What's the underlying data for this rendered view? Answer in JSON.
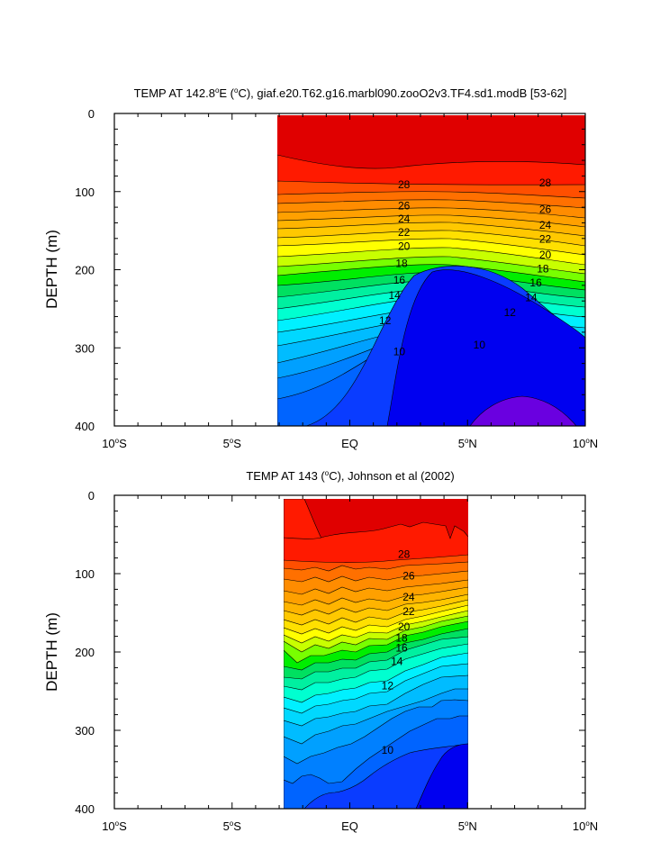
{
  "chart_data": [
    {
      "type": "contour",
      "title_prefix": "TEMP AT 142.8",
      "title_sup": "o",
      "title_mid": "E (",
      "title_sup2": "o",
      "title_suffix": "C), giaf.e20.T62.g16.marbl090.zooO2v3.TF4.sd1.modB [53-62]",
      "ylabel": "DEPTH (m)",
      "xlabel": "",
      "xlim": [
        -10,
        10
      ],
      "ylim": [
        400,
        0
      ],
      "data_xrange": [
        -2.9,
        10
      ],
      "x_ticks": [
        {
          "value": -10,
          "num": "10",
          "sup": "o",
          "hemi": "S"
        },
        {
          "value": -5,
          "num": "5",
          "sup": "o",
          "hemi": "S"
        },
        {
          "value": 0,
          "num": "EQ",
          "sup": "",
          "hemi": ""
        },
        {
          "value": 5,
          "num": "5",
          "sup": "o",
          "hemi": "N"
        },
        {
          "value": 10,
          "num": "10",
          "sup": "o",
          "hemi": "N"
        }
      ],
      "y_ticks": [
        "0",
        "100",
        "200",
        "300",
        "400"
      ],
      "contour_levels": [
        6,
        7,
        8,
        9,
        10,
        11,
        12,
        13,
        14,
        15,
        16,
        17,
        18,
        19,
        20,
        21,
        22,
        23,
        24,
        25,
        26,
        27,
        28,
        29
      ],
      "contour_labels": [
        {
          "text": "28",
          "x": 2.3,
          "depth": 91
        },
        {
          "text": "26",
          "x": 2.3,
          "depth": 118
        },
        {
          "text": "24",
          "x": 2.3,
          "depth": 135
        },
        {
          "text": "22",
          "x": 2.3,
          "depth": 152
        },
        {
          "text": "20",
          "x": 2.3,
          "depth": 170
        },
        {
          "text": "18",
          "x": 2.2,
          "depth": 192
        },
        {
          "text": "16",
          "x": 2.1,
          "depth": 213
        },
        {
          "text": "14",
          "x": 1.9,
          "depth": 233
        },
        {
          "text": "12",
          "x": 1.5,
          "depth": 265
        },
        {
          "text": "10",
          "x": 2.1,
          "depth": 305
        },
        {
          "text": "28",
          "x": 8.3,
          "depth": 89
        },
        {
          "text": "26",
          "x": 8.3,
          "depth": 123
        },
        {
          "text": "24",
          "x": 8.3,
          "depth": 143
        },
        {
          "text": "22",
          "x": 8.3,
          "depth": 161
        },
        {
          "text": "20",
          "x": 8.3,
          "depth": 181
        },
        {
          "text": "18",
          "x": 8.2,
          "depth": 199
        },
        {
          "text": "16",
          "x": 7.9,
          "depth": 217
        },
        {
          "text": "14",
          "x": 7.7,
          "depth": 236
        },
        {
          "text": "12",
          "x": 6.8,
          "depth": 255
        },
        {
          "text": "10",
          "x": 5.5,
          "depth": 296
        }
      ]
    },
    {
      "type": "contour",
      "title_prefix": "TEMP AT 143 (",
      "title_sup": "o",
      "title_mid": "C), Johnson et al (2002)",
      "title_sup2": "",
      "title_suffix": "",
      "ylabel": "DEPTH (m)",
      "xlabel": "",
      "xlim": [
        -10,
        10
      ],
      "ylim": [
        400,
        0
      ],
      "data_xrange": [
        -2.6,
        5
      ],
      "x_ticks": [
        {
          "value": -10,
          "num": "10",
          "sup": "o",
          "hemi": "S"
        },
        {
          "value": -5,
          "num": "5",
          "sup": "o",
          "hemi": "S"
        },
        {
          "value": 0,
          "num": "EQ",
          "sup": "",
          "hemi": ""
        },
        {
          "value": 5,
          "num": "5",
          "sup": "o",
          "hemi": "N"
        },
        {
          "value": 10,
          "num": "10",
          "sup": "o",
          "hemi": "N"
        }
      ],
      "y_ticks": [
        "0",
        "100",
        "200",
        "300",
        "400"
      ],
      "contour_levels": [
        6,
        7,
        8,
        9,
        10,
        11,
        12,
        13,
        14,
        15,
        16,
        17,
        18,
        19,
        20,
        21,
        22,
        23,
        24,
        25,
        26,
        27,
        28,
        29
      ],
      "contour_labels": [
        {
          "text": "28",
          "x": 2.3,
          "depth": 75
        },
        {
          "text": "26",
          "x": 2.5,
          "depth": 103
        },
        {
          "text": "24",
          "x": 2.5,
          "depth": 130
        },
        {
          "text": "22",
          "x": 2.5,
          "depth": 148
        },
        {
          "text": "20",
          "x": 2.3,
          "depth": 168
        },
        {
          "text": "18",
          "x": 2.2,
          "depth": 182
        },
        {
          "text": "16",
          "x": 2.2,
          "depth": 195
        },
        {
          "text": "14",
          "x": 2.0,
          "depth": 212
        },
        {
          "text": "12",
          "x": 1.6,
          "depth": 243
        },
        {
          "text": "10",
          "x": 1.6,
          "depth": 325
        }
      ]
    }
  ]
}
